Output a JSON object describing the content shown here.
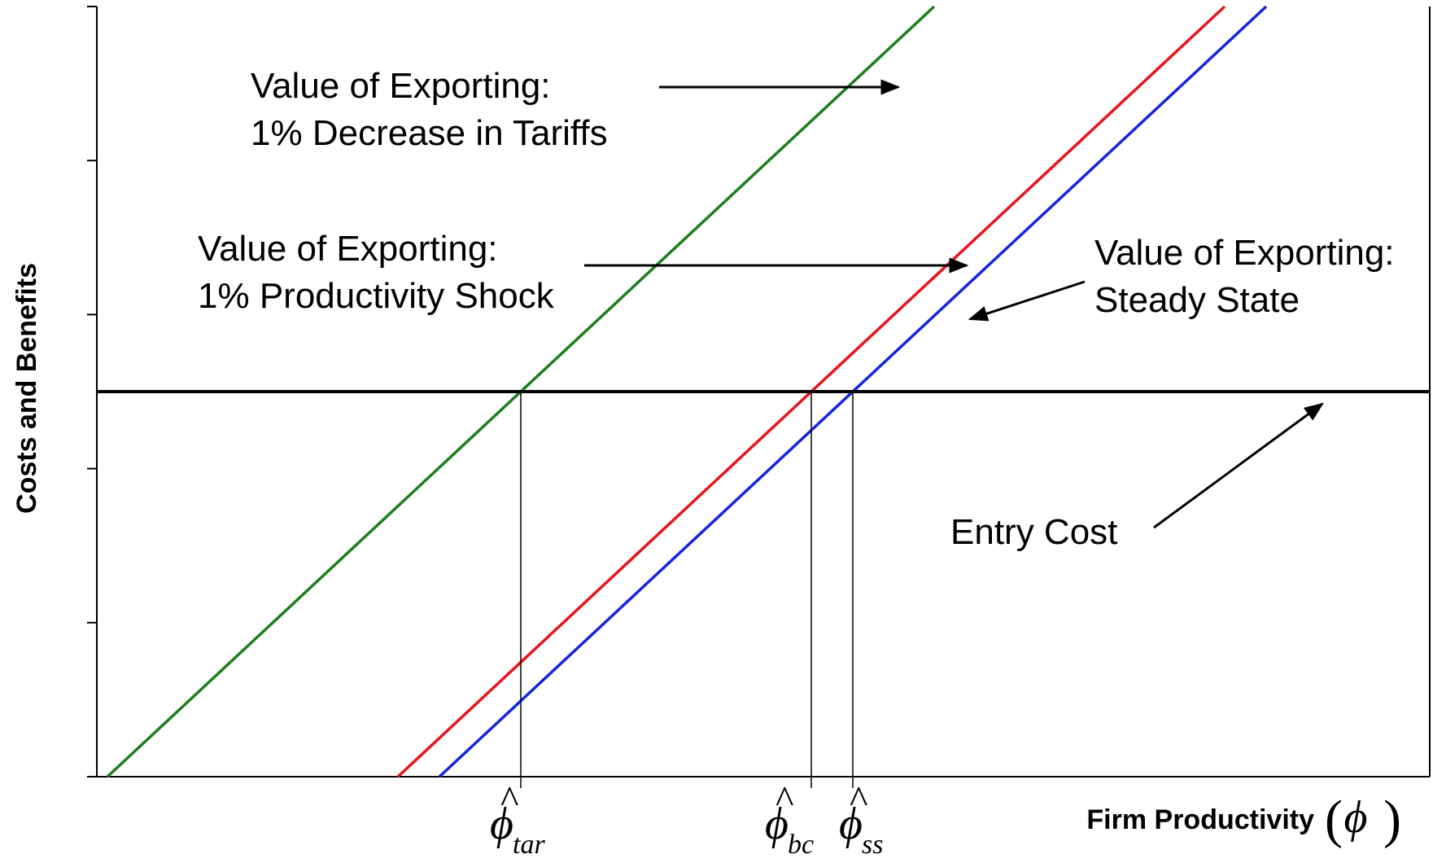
{
  "chart_data": {
    "type": "line",
    "title": "",
    "ylabel": "Costs and Benefits",
    "xlabel": "Firm Productivity",
    "xlabel_symbol": "ϕ",
    "axes": {
      "x_ticks_labeled": [
        "tar",
        "bc",
        "ss"
      ],
      "y_tick_count": 5,
      "grid": false,
      "numeric_scale": false
    },
    "cutoffs": [
      {
        "name": "tar",
        "symbol": "ϕ̂",
        "subscript": "tar"
      },
      {
        "name": "bc",
        "symbol": "ϕ̂",
        "subscript": "bc"
      },
      {
        "name": "ss",
        "symbol": "ϕ̂",
        "subscript": "ss"
      }
    ],
    "series": [
      {
        "label_lines": [
          "Value of Exporting:",
          "1% Decrease in Tariffs"
        ],
        "color": "#1a7f1a",
        "crosses_entry_cost_at": "tar"
      },
      {
        "label_lines": [
          "Value of Exporting:",
          "1% Productivity Shock"
        ],
        "color": "#e8141b",
        "crosses_entry_cost_at": "bc"
      },
      {
        "label_lines": [
          "Value of Exporting:",
          "Steady State"
        ],
        "color": "#1425e0",
        "crosses_entry_cost_at": "ss"
      },
      {
        "label_lines": [
          "Entry Cost"
        ],
        "color": "#000000",
        "horizontal": true
      }
    ]
  }
}
